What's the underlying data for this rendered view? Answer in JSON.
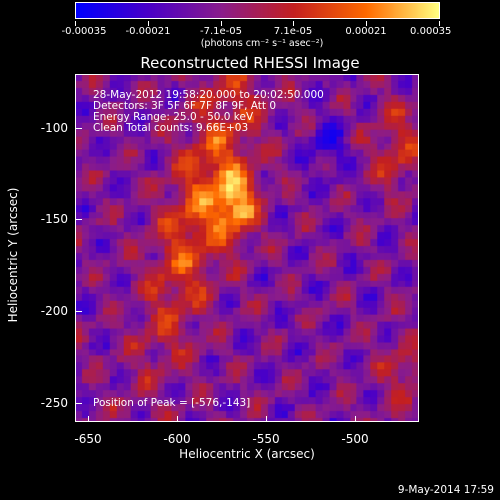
{
  "colorbar": {
    "tick_labels": [
      "-0.00035",
      "-0.00021",
      "-7.1e-05",
      "7.1e-05",
      "0.00021",
      "0.00035"
    ],
    "units_label": "(photons cm⁻² s⁻¹ asec⁻²)",
    "colors": [
      "#0000ff",
      "#4a00c8",
      "#8a1c8c",
      "#c42020",
      "#ff6a00",
      "#ffff80"
    ]
  },
  "title": "Reconstructed RHESSI Image",
  "info": {
    "line1": "28-May-2012 19:58:20.000 to 20:02:50.000",
    "line2": "Detectors: 3F 5F 6F 7F 8F 9F, Att 0",
    "line3": "Energy Range: 25.0 - 50.0 keV",
    "line4": "Clean    Total counts: 9.66E+03",
    "peak": "Position of Peak = [-576,-143]"
  },
  "axes": {
    "xlabel": "Heliocentric X (arcsec)",
    "ylabel": "Heliocentric Y (arcsec)",
    "xticks": [
      "-650",
      "-600",
      "-550",
      "-500"
    ],
    "yticks": [
      "-100",
      "-150",
      "-200",
      "-250"
    ],
    "xlim": [
      -666,
      -473
    ],
    "ylim": [
      -266,
      -72
    ]
  },
  "footer_date": "9-May-2014 17:59"
}
